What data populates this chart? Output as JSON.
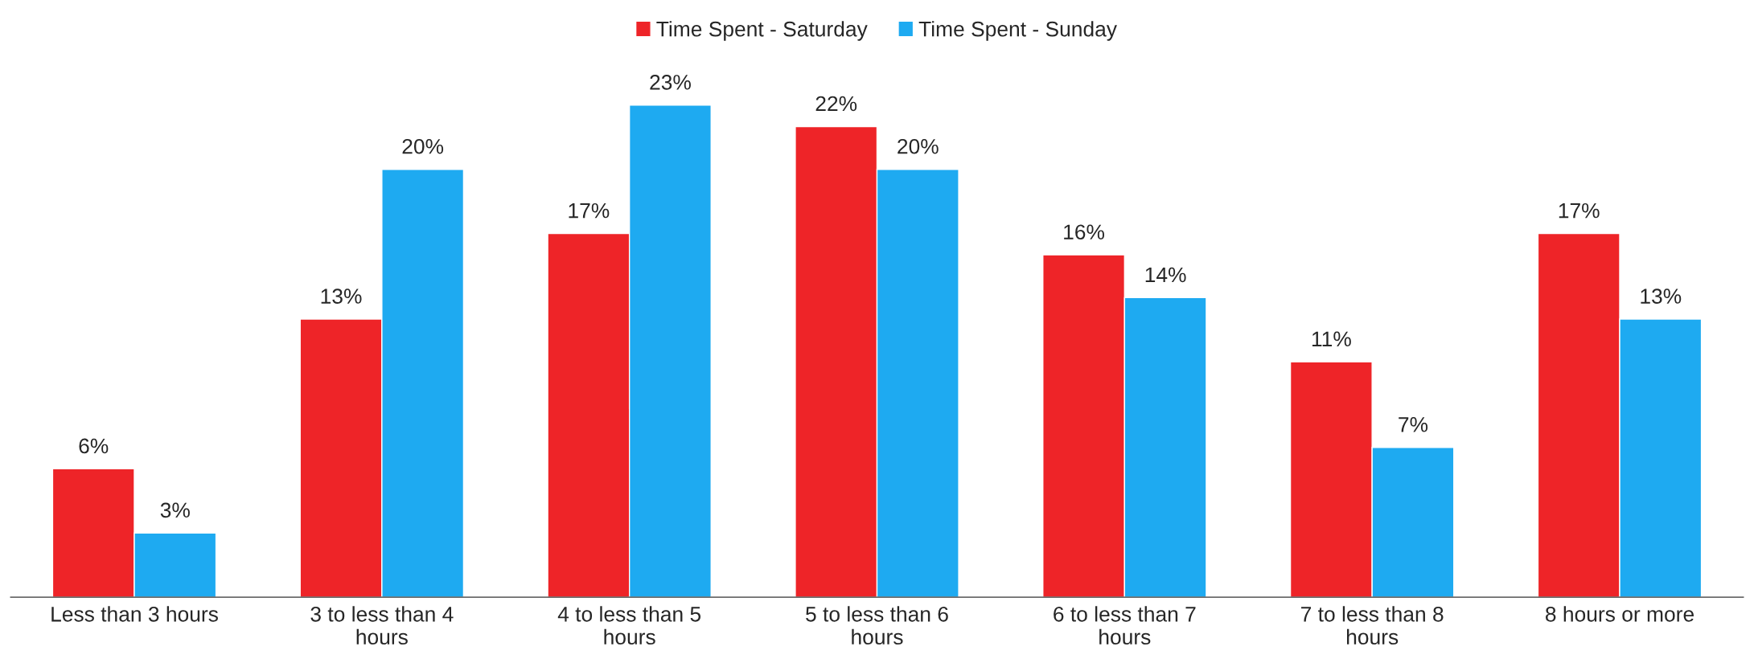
{
  "chart_data": {
    "type": "bar",
    "categories": [
      "Less than 3 hours",
      "3 to less than 4\nhours",
      "4 to less than 5\nhours",
      "5 to less than 6\nhours",
      "6 to less than 7\nhours",
      "7 to less than 8\nhours",
      "8 hours or more"
    ],
    "series": [
      {
        "name": "Time Spent - Saturday",
        "color": "#ee2428",
        "values": [
          6,
          13,
          17,
          22,
          16,
          11,
          17
        ],
        "value_labels": [
          "6%",
          "13%",
          "17%",
          "22%",
          "16%",
          "11%",
          "17%"
        ]
      },
      {
        "name": "Time Spent - Sunday",
        "color": "#1eaaf1",
        "values": [
          3,
          20,
          23,
          20,
          14,
          7,
          13
        ],
        "value_labels": [
          "3%",
          "20%",
          "23%",
          "20%",
          "14%",
          "7%",
          "13%"
        ]
      }
    ],
    "legend": "top"
  }
}
